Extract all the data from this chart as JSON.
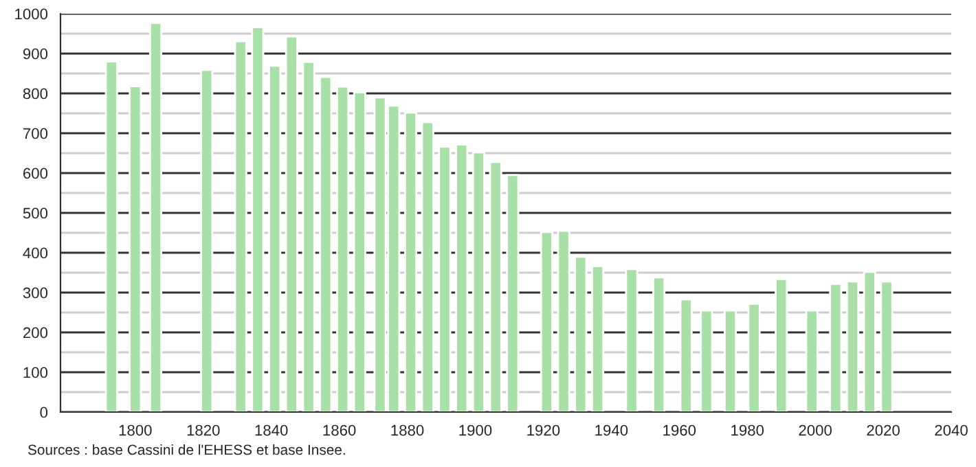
{
  "chart_data": {
    "type": "bar",
    "x": [
      1793,
      1800,
      1806,
      1821,
      1831,
      1836,
      1841,
      1846,
      1851,
      1856,
      1861,
      1866,
      1872,
      1876,
      1881,
      1886,
      1891,
      1896,
      1901,
      1906,
      1911,
      1921,
      1926,
      1931,
      1936,
      1946,
      1954,
      1962,
      1968,
      1975,
      1982,
      1990,
      1999,
      2006,
      2011,
      2016,
      2021
    ],
    "values": [
      880,
      818,
      977,
      859,
      931,
      966,
      869,
      943,
      879,
      841,
      817,
      803,
      790,
      769,
      752,
      728,
      666,
      672,
      652,
      628,
      595,
      452,
      455,
      390,
      366,
      359,
      338,
      283,
      255,
      255,
      272,
      334,
      255,
      322,
      328,
      352,
      328
    ],
    "color": "#a8e0a8",
    "xlim": [
      1778,
      2040
    ],
    "xticks": [
      1800,
      1820,
      1840,
      1860,
      1880,
      1900,
      1920,
      1940,
      1960,
      1980,
      2000,
      2020,
      2040
    ],
    "ylim": [
      0,
      1000
    ],
    "yticks": [
      0,
      {
        "value": 50,
        "label": null
      },
      100,
      {
        "value": 150,
        "label": null
      },
      200,
      {
        "value": 250,
        "label": null
      },
      300,
      {
        "value": 350,
        "label": null
      },
      400,
      {
        "value": 450,
        "label": null
      },
      500,
      {
        "value": 550,
        "label": null
      },
      600,
      {
        "value": 650,
        "label": null
      },
      700,
      {
        "value": 750,
        "label": null
      },
      800,
      {
        "value": 850,
        "label": null
      },
      900,
      {
        "value": 950,
        "label": null
      },
      1000
    ],
    "grid": "y",
    "annotations": [
      "Sources : base Cassini de l'EHESS et base Insee."
    ]
  }
}
